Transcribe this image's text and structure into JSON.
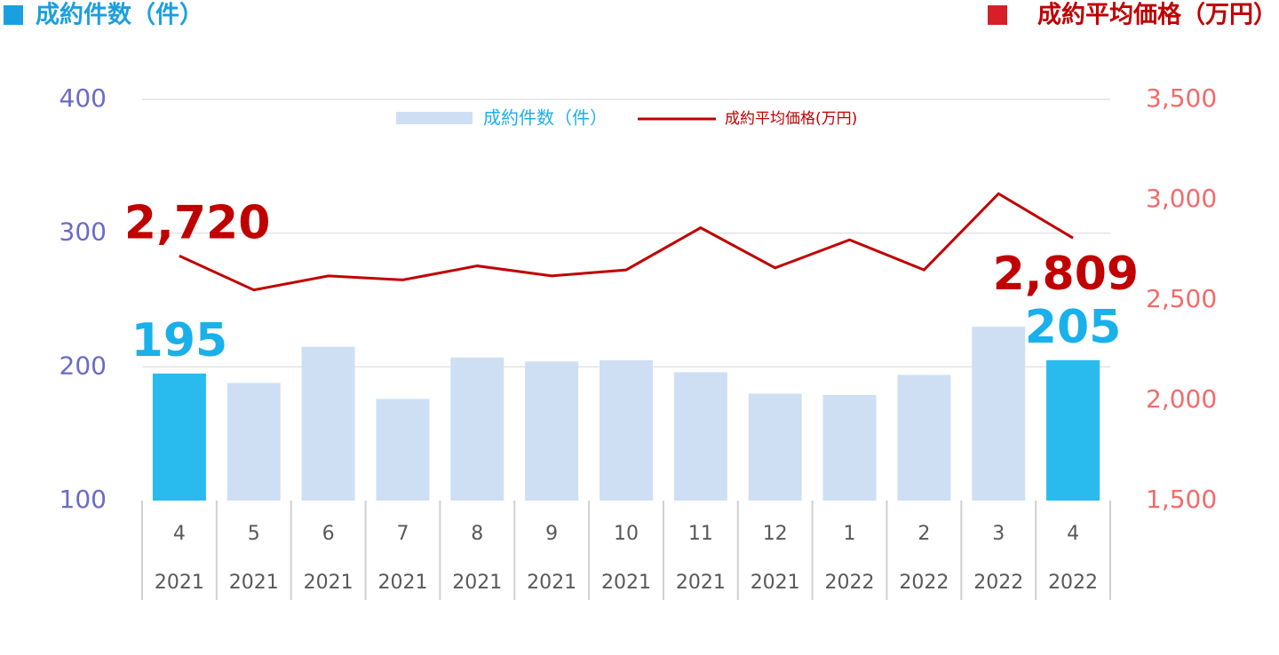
{
  "chart_data": {
    "type": "bar_line",
    "left_title": "成約件数（件）",
    "right_title": "成約平均価格（万円）",
    "categories": [
      "4",
      "5",
      "6",
      "7",
      "8",
      "9",
      "10",
      "11",
      "12",
      "1",
      "2",
      "3",
      "4"
    ],
    "years": [
      "2021",
      "2021",
      "2021",
      "2021",
      "2021",
      "2021",
      "2021",
      "2021",
      "2021",
      "2022",
      "2022",
      "2022",
      "2022"
    ],
    "series": [
      {
        "name": "成約件数（件）",
        "type": "bar",
        "color": "#cfdff3",
        "colors": [
          "#29bbee",
          "#cfdff3",
          "#cfdff3",
          "#cfdff3",
          "#cfdff3",
          "#cfdff3",
          "#cfdff3",
          "#cfdff3",
          "#cfdff3",
          "#cfdff3",
          "#cfdff3",
          "#cfdff3",
          "#29bbee"
        ],
        "values": [
          195,
          188,
          215,
          176,
          207,
          204,
          205,
          196,
          180,
          179,
          194,
          230,
          205
        ],
        "value_labels": [
          "195",
          null,
          null,
          null,
          null,
          null,
          null,
          null,
          null,
          null,
          null,
          null,
          "205"
        ]
      },
      {
        "name": "成約平均価格(万円)",
        "type": "line",
        "axis": "y2",
        "color": "#c00000",
        "values": [
          2720,
          2550,
          2620,
          2600,
          2670,
          2620,
          2650,
          2860,
          2660,
          2800,
          2650,
          3030,
          2809
        ],
        "value_labels": [
          "2,720",
          null,
          null,
          null,
          null,
          null,
          null,
          null,
          null,
          null,
          null,
          null,
          "2,809"
        ]
      }
    ],
    "ylim": [
      100,
      400
    ],
    "yticks": [
      100,
      200,
      300,
      400
    ],
    "y2lim": [
      1500,
      3500
    ],
    "y2ticks": [
      {
        "value": 1500,
        "label": "1,500"
      },
      {
        "value": 2000,
        "label": "2,000"
      },
      {
        "value": 2500,
        "label": "2,500"
      },
      {
        "value": 3000,
        "label": "3,000"
      },
      {
        "value": 3500,
        "label": "3,500"
      }
    ],
    "grid": true
  }
}
